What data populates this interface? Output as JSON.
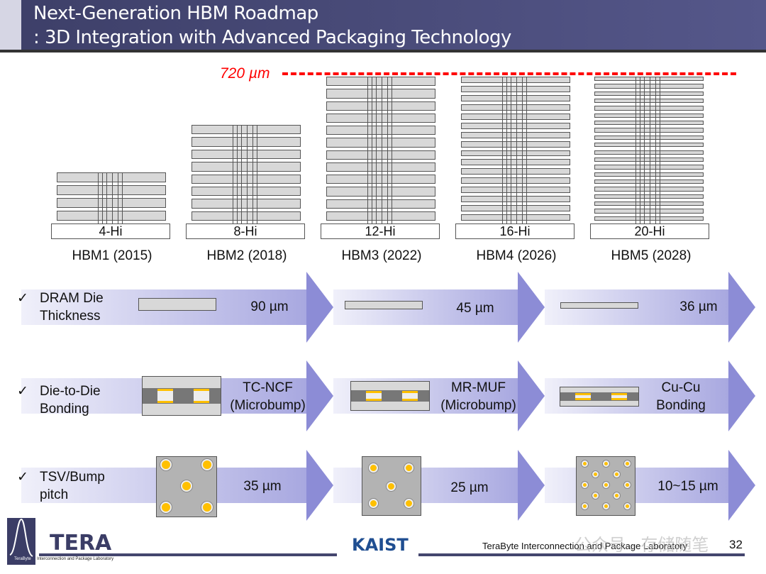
{
  "header": {
    "title_line1": "Next-Generation HBM Roadmap",
    "title_line2": ": 3D Integration with Advanced Packaging Technology"
  },
  "height_limit": {
    "label": "720 µm",
    "color": "#ff0000"
  },
  "stacks": [
    {
      "layers": "4-Hi",
      "generation": "HBM1 (2015)"
    },
    {
      "layers": "8-Hi",
      "generation": "HBM2 (2018)"
    },
    {
      "layers": "12-Hi",
      "generation": "HBM3 (2022)"
    },
    {
      "layers": "16-Hi",
      "generation": "HBM4 (2026)"
    },
    {
      "layers": "20-Hi",
      "generation": "HBM5 (2028)"
    }
  ],
  "rows": [
    {
      "check": "✓",
      "label_line1": "DRAM Die",
      "label_line2": "Thickness",
      "values": [
        "90 µm",
        "45 µm",
        "36 µm"
      ]
    },
    {
      "check": "✓",
      "label_line1": "Die-to-Die",
      "label_line2": "Bonding",
      "values": [
        [
          "TC-NCF",
          "(Microbump)"
        ],
        [
          "MR-MUF",
          "(Microbump)"
        ],
        [
          "Cu-Cu",
          "Bonding"
        ]
      ]
    },
    {
      "check": "✓",
      "label_line1": "TSV/Bump",
      "label_line2": "pitch",
      "values": [
        "35 µm",
        "25 µm",
        "10~15 µm"
      ]
    }
  ],
  "footer": {
    "logo_text": "TERA",
    "logo_subtitle_a": "TeraByte",
    "logo_subtitle_b": "Interconnection and Package Laboratory",
    "kaist": "KAIST",
    "lab_name": "TeraByte Interconnection and Package Laboratory",
    "watermark": "公众号 · 存储随笔",
    "page_number": "32"
  },
  "colors": {
    "title_bg": "#4a4c7a",
    "arrow_start": "#f0f0fa",
    "arrow_end": "#6f6fcc",
    "bump": "#ffc000"
  }
}
